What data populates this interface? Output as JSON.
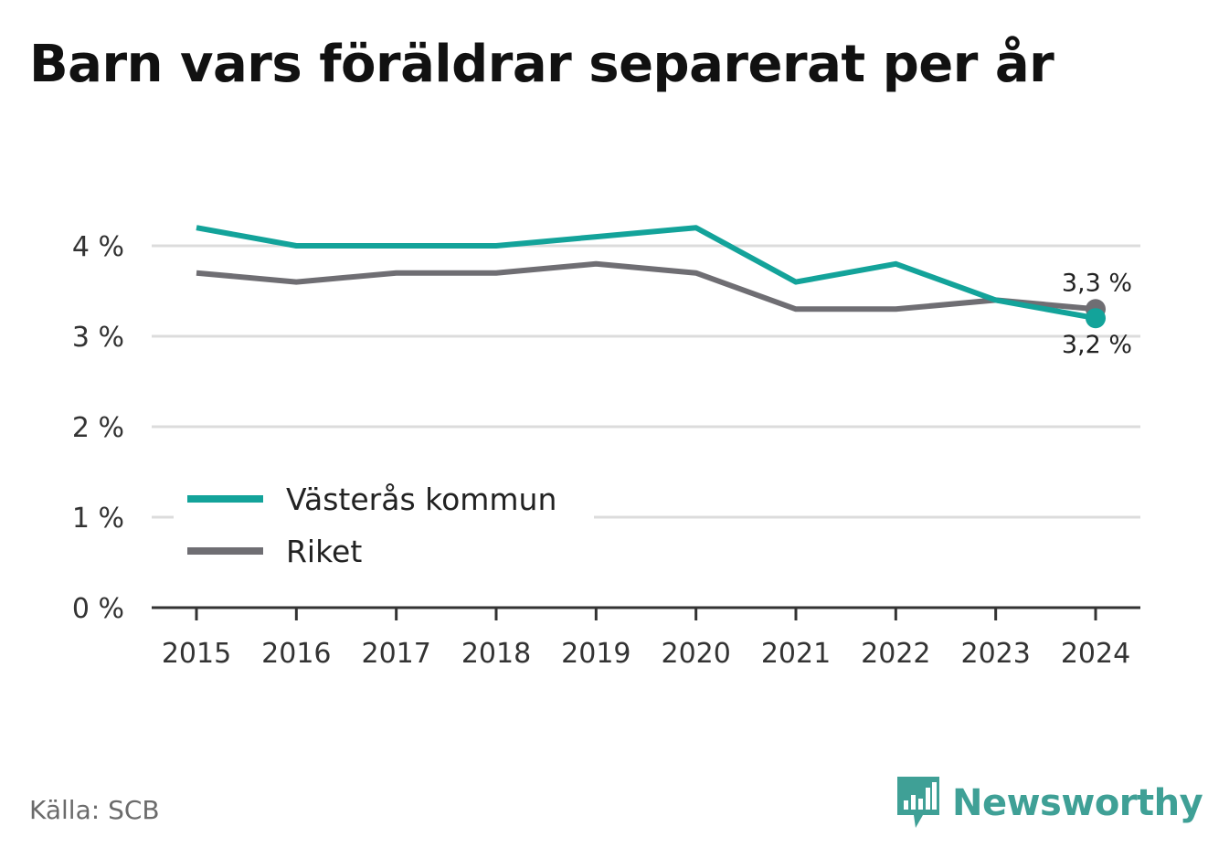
{
  "title": "Barn vars föräldrar separerat per år",
  "source": "Källa: SCB",
  "brand": {
    "name": "Newsworthy",
    "icon": "newsworthy-logo-icon",
    "color": "#3fa096"
  },
  "chart_data": {
    "type": "line",
    "title": "Barn vars föräldrar separerat per år",
    "x": [
      "2015",
      "2016",
      "2017",
      "2018",
      "2019",
      "2020",
      "2021",
      "2022",
      "2023",
      "2024"
    ],
    "series": [
      {
        "name": "Västerås kommun",
        "color": "#13a39a",
        "values": [
          4.2,
          4.0,
          4.0,
          4.0,
          4.1,
          4.2,
          3.6,
          3.8,
          3.4,
          3.2
        ],
        "end_label": "3,2 %"
      },
      {
        "name": "Riket",
        "color": "#6f6e73",
        "values": [
          3.7,
          3.6,
          3.7,
          3.7,
          3.8,
          3.7,
          3.3,
          3.3,
          3.4,
          3.3
        ],
        "end_label": "3,3 %"
      }
    ],
    "yticks": [
      0,
      1,
      2,
      3,
      4
    ],
    "ytick_labels": [
      "0 %",
      "1 %",
      "2 %",
      "3 %",
      "4 %"
    ],
    "ylim": [
      0,
      4.5
    ],
    "grid": true,
    "legend_placement": "lower-left",
    "xlabel": "",
    "ylabel": ""
  }
}
